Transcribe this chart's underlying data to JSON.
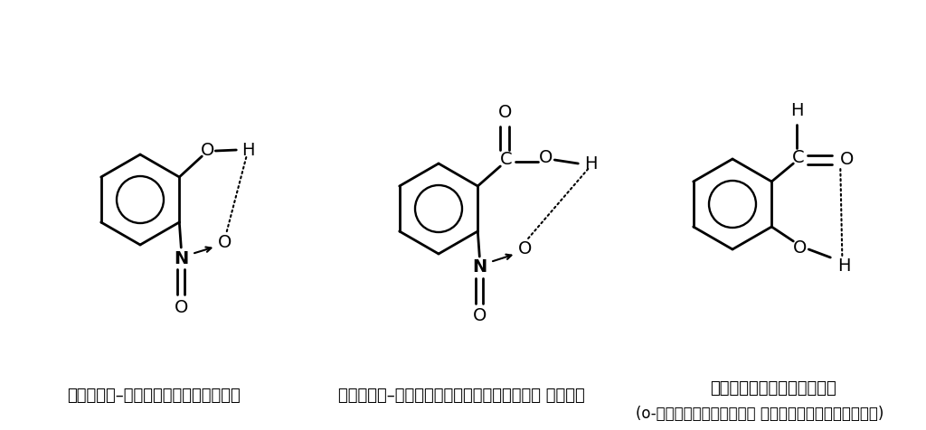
{
  "bg_color": "#ffffff",
  "line_color": "#000000",
  "label1": "ऑर्थो–नाइट्रोफिनॉल",
  "label2": "ऑर्थो–नाइट्रोबेन्जोइक अम्ल",
  "label3": "सैलिसिलडिहाइड",
  "label3b": "(o-हाइड्रॉक्सी बेन्जल्डीहाइड)",
  "font_size_label": 13,
  "font_size_atom": 14,
  "lw": 2.0
}
